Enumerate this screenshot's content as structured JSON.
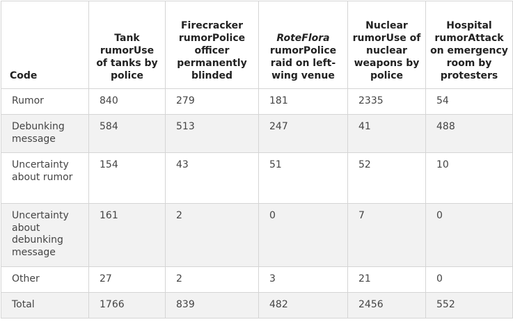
{
  "table": {
    "headers": [
      {
        "id": "code",
        "parts": [
          "Code"
        ]
      },
      {
        "id": "tank",
        "parts": [
          "Tank rumorUse of tanks by police"
        ]
      },
      {
        "id": "firecracker",
        "parts": [
          "Firecracker rumorPolice officer permanently blinded"
        ]
      },
      {
        "id": "roteflora",
        "italic": "RoteFlora",
        "parts": [
          " rumorPolice raid on left-wing venue"
        ]
      },
      {
        "id": "nuclear",
        "parts": [
          "Nuclear rumorUse of nuclear weapons by police"
        ]
      },
      {
        "id": "hospital",
        "parts": [
          "Hospital rumorAttack on emergency room by protesters"
        ]
      }
    ],
    "rows": [
      {
        "code": "Rumor",
        "values": [
          "840",
          "279",
          "181",
          "2335",
          "54"
        ]
      },
      {
        "code": "Debunking message",
        "values": [
          "584",
          "513",
          "247",
          "41",
          "488"
        ]
      },
      {
        "code": "Uncertainty about rumor",
        "values": [
          "154",
          "43",
          "51",
          "52",
          "10"
        ]
      },
      {
        "code": "Uncertainty about debunking message",
        "values": [
          "161",
          "2",
          "0",
          "7",
          "0"
        ]
      },
      {
        "code": "Other",
        "values": [
          "27",
          "2",
          "3",
          "21",
          "0"
        ]
      },
      {
        "code": "Total",
        "values": [
          "1766",
          "839",
          "482",
          "2456",
          "552"
        ]
      }
    ]
  }
}
